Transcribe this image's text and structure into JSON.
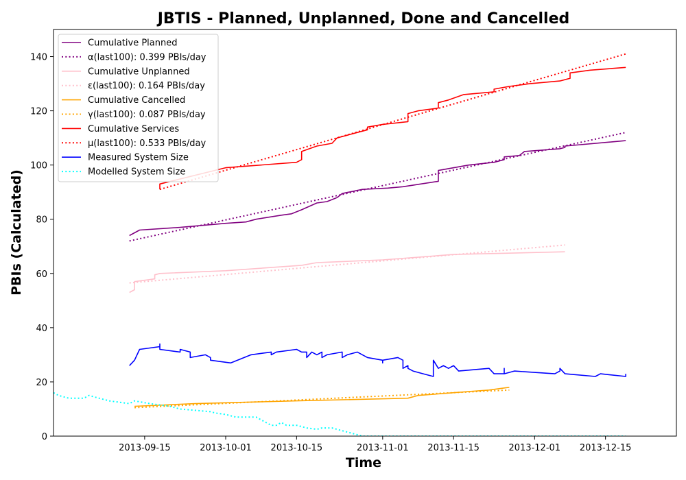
{
  "chart_data": {
    "type": "line",
    "title": "JBTIS - Planned, Unplanned, Done  and Cancelled",
    "xlabel": "Time",
    "ylabel": "PBIs (Calculated)",
    "xlim": [
      "2013-08-28",
      "2013-12-29"
    ],
    "ylim": [
      0,
      150
    ],
    "x_ticks": [
      "2013-09-15",
      "2013-10-01",
      "2013-10-15",
      "2013-11-01",
      "2013-11-15",
      "2013-12-01",
      "2013-12-15"
    ],
    "y_ticks": [
      0,
      20,
      40,
      60,
      80,
      100,
      120,
      140
    ],
    "grid": false,
    "legend_position": "top-left",
    "series": [
      {
        "name": "Cumulative Planned",
        "color": "#800080",
        "style": "solid",
        "points": [
          [
            "2013-09-12",
            74
          ],
          [
            "2013-09-14",
            76
          ],
          [
            "2013-09-22",
            77
          ],
          [
            "2013-10-01",
            78.5
          ],
          [
            "2013-10-05",
            79
          ],
          [
            "2013-10-07",
            80
          ],
          [
            "2013-10-12",
            81.5
          ],
          [
            "2013-10-14",
            82
          ],
          [
            "2013-10-16",
            83.5
          ],
          [
            "2013-10-19",
            86
          ],
          [
            "2013-10-21",
            86.5
          ],
          [
            "2013-10-23",
            88
          ],
          [
            "2013-10-24",
            89.5
          ],
          [
            "2013-10-28",
            91
          ],
          [
            "2013-11-02",
            91.5
          ],
          [
            "2013-11-05",
            92
          ],
          [
            "2013-11-12",
            94
          ],
          [
            "2013-11-12",
            98
          ],
          [
            "2013-11-18",
            100
          ],
          [
            "2013-11-23",
            101
          ],
          [
            "2013-11-25",
            102
          ],
          [
            "2013-11-25",
            103
          ],
          [
            "2013-11-28",
            103.5
          ],
          [
            "2013-11-29",
            105
          ],
          [
            "2013-12-06",
            106
          ],
          [
            "2013-12-07",
            106.5
          ],
          [
            "2013-12-07",
            107
          ],
          [
            "2013-12-19",
            109
          ]
        ]
      },
      {
        "name": "α(last100): 0.399 PBIs/day",
        "color": "#800080",
        "style": "dotted",
        "points": [
          [
            "2013-09-12",
            72
          ],
          [
            "2013-12-19",
            112
          ]
        ]
      },
      {
        "name": "Cumulative Unplanned",
        "color": "#ffc0cb",
        "style": "solid",
        "points": [
          [
            "2013-09-12",
            53
          ],
          [
            "2013-09-13",
            54
          ],
          [
            "2013-09-13",
            57
          ],
          [
            "2013-09-17",
            58
          ],
          [
            "2013-09-17",
            59.5
          ],
          [
            "2013-09-18",
            60
          ],
          [
            "2013-10-01",
            61
          ],
          [
            "2013-10-16",
            63
          ],
          [
            "2013-10-19",
            64
          ],
          [
            "2013-11-01",
            65
          ],
          [
            "2013-11-15",
            67
          ],
          [
            "2013-12-07",
            68
          ]
        ]
      },
      {
        "name": "ε(last100): 0.164 PBIs/day",
        "color": "#ffc0cb",
        "style": "dotted",
        "points": [
          [
            "2013-09-12",
            56.5
          ],
          [
            "2013-12-07",
            70.5
          ]
        ]
      },
      {
        "name": "Cumulative Cancelled",
        "color": "#ffa500",
        "style": "solid",
        "points": [
          [
            "2013-09-13",
            11
          ],
          [
            "2013-09-25",
            12
          ],
          [
            "2013-10-15",
            13
          ],
          [
            "2013-11-06",
            14
          ],
          [
            "2013-11-08",
            15
          ],
          [
            "2013-11-15",
            16
          ],
          [
            "2013-11-22",
            17
          ],
          [
            "2013-11-26",
            18
          ]
        ]
      },
      {
        "name": "γ(last100): 0.087 PBIs/day",
        "color": "#ffa500",
        "style": "dotted",
        "points": [
          [
            "2013-09-13",
            10.5
          ],
          [
            "2013-11-26",
            17
          ]
        ]
      },
      {
        "name": "Cumulative Services",
        "color": "#ff0000",
        "style": "solid",
        "points": [
          [
            "2013-09-18",
            91
          ],
          [
            "2013-09-18",
            93
          ],
          [
            "2013-10-01",
            99
          ],
          [
            "2013-10-15",
            101
          ],
          [
            "2013-10-16",
            102
          ],
          [
            "2013-10-16",
            105
          ],
          [
            "2013-10-19",
            107
          ],
          [
            "2013-10-22",
            108
          ],
          [
            "2013-10-23",
            110
          ],
          [
            "2013-10-25",
            111
          ],
          [
            "2013-10-27",
            112
          ],
          [
            "2013-10-29",
            113
          ],
          [
            "2013-10-29",
            114
          ],
          [
            "2013-11-01",
            115
          ],
          [
            "2013-11-06",
            116
          ],
          [
            "2013-11-06",
            119
          ],
          [
            "2013-11-08",
            120
          ],
          [
            "2013-11-12",
            121
          ],
          [
            "2013-11-12",
            123
          ],
          [
            "2013-11-14",
            124
          ],
          [
            "2013-11-17",
            126
          ],
          [
            "2013-11-23",
            127
          ],
          [
            "2013-11-23",
            128
          ],
          [
            "2013-11-26",
            129
          ],
          [
            "2013-11-30",
            130
          ],
          [
            "2013-12-06",
            131
          ],
          [
            "2013-12-08",
            132
          ],
          [
            "2013-12-08",
            134
          ],
          [
            "2013-12-12",
            135
          ],
          [
            "2013-12-19",
            136
          ]
        ]
      },
      {
        "name": "μ(last100): 0.533 PBIs/day",
        "color": "#ff0000",
        "style": "dotted",
        "points": [
          [
            "2013-09-18",
            91
          ],
          [
            "2013-12-19",
            141
          ]
        ]
      },
      {
        "name": "Measured System Size",
        "color": "#0000ff",
        "style": "solid",
        "points": [
          [
            "2013-09-12",
            26
          ],
          [
            "2013-09-13",
            28
          ],
          [
            "2013-09-14",
            32
          ],
          [
            "2013-09-18",
            33
          ],
          [
            "2013-09-18",
            34
          ],
          [
            "2013-09-18",
            32
          ],
          [
            "2013-09-22",
            31
          ],
          [
            "2013-09-22",
            32
          ],
          [
            "2013-09-24",
            31
          ],
          [
            "2013-09-24",
            29
          ],
          [
            "2013-09-27",
            30
          ],
          [
            "2013-09-28",
            29
          ],
          [
            "2013-09-28",
            28
          ],
          [
            "2013-10-02",
            27
          ],
          [
            "2013-10-06",
            30
          ],
          [
            "2013-10-10",
            31
          ],
          [
            "2013-10-10",
            30
          ],
          [
            "2013-10-11",
            31
          ],
          [
            "2013-10-15",
            32
          ],
          [
            "2013-10-16",
            31
          ],
          [
            "2013-10-17",
            31
          ],
          [
            "2013-10-17",
            29
          ],
          [
            "2013-10-18",
            31
          ],
          [
            "2013-10-19",
            30
          ],
          [
            "2013-10-20",
            31
          ],
          [
            "2013-10-20",
            29
          ],
          [
            "2013-10-21",
            30
          ],
          [
            "2013-10-24",
            31
          ],
          [
            "2013-10-24",
            29
          ],
          [
            "2013-10-25",
            30
          ],
          [
            "2013-10-27",
            31
          ],
          [
            "2013-10-29",
            29
          ],
          [
            "2013-11-01",
            28
          ],
          [
            "2013-11-01",
            27
          ],
          [
            "2013-11-01",
            28
          ],
          [
            "2013-11-04",
            29
          ],
          [
            "2013-11-05",
            28
          ],
          [
            "2013-11-05",
            25
          ],
          [
            "2013-11-06",
            26
          ],
          [
            "2013-11-06",
            25
          ],
          [
            "2013-11-07",
            24
          ],
          [
            "2013-11-09",
            23
          ],
          [
            "2013-11-11",
            22
          ],
          [
            "2013-11-11",
            28
          ],
          [
            "2013-11-12",
            25
          ],
          [
            "2013-11-13",
            26
          ],
          [
            "2013-11-14",
            25
          ],
          [
            "2013-11-15",
            26
          ],
          [
            "2013-11-16",
            24
          ],
          [
            "2013-11-22",
            25
          ],
          [
            "2013-11-23",
            23
          ],
          [
            "2013-11-25",
            23
          ],
          [
            "2013-11-25",
            25
          ],
          [
            "2013-11-25",
            23
          ],
          [
            "2013-11-27",
            24
          ],
          [
            "2013-12-05",
            23
          ],
          [
            "2013-12-06",
            24
          ],
          [
            "2013-12-06",
            25
          ],
          [
            "2013-12-07",
            23
          ],
          [
            "2013-12-13",
            22
          ],
          [
            "2013-12-14",
            23
          ],
          [
            "2013-12-19",
            22
          ],
          [
            "2013-12-19",
            23
          ]
        ]
      },
      {
        "name": "Modelled System Size",
        "color": "#00ffff",
        "style": "dotted",
        "points": [
          [
            "2013-08-28",
            16
          ],
          [
            "2013-08-29",
            15
          ],
          [
            "2013-08-31",
            14
          ],
          [
            "2013-09-03",
            14
          ],
          [
            "2013-09-04",
            15
          ],
          [
            "2013-09-06",
            14
          ],
          [
            "2013-09-08",
            13
          ],
          [
            "2013-09-10",
            12.5
          ],
          [
            "2013-09-12",
            12
          ],
          [
            "2013-09-13",
            13
          ],
          [
            "2013-09-16",
            12
          ],
          [
            "2013-09-20",
            11
          ],
          [
            "2013-09-22",
            10
          ],
          [
            "2013-09-25",
            9.5
          ],
          [
            "2013-09-28",
            9
          ],
          [
            "2013-09-29",
            8.5
          ],
          [
            "2013-10-01",
            8
          ],
          [
            "2013-10-03",
            7
          ],
          [
            "2013-10-07",
            7
          ],
          [
            "2013-10-08",
            6
          ],
          [
            "2013-10-09",
            5
          ],
          [
            "2013-10-10",
            4
          ],
          [
            "2013-10-11",
            4
          ],
          [
            "2013-10-12",
            5
          ],
          [
            "2013-10-13",
            4
          ],
          [
            "2013-10-15",
            4
          ],
          [
            "2013-10-17",
            3
          ],
          [
            "2013-10-19",
            2.5
          ],
          [
            "2013-10-20",
            3
          ],
          [
            "2013-10-22",
            3
          ],
          [
            "2013-10-24",
            2
          ],
          [
            "2013-10-26",
            1
          ],
          [
            "2013-10-28",
            0
          ],
          [
            "2013-12-19",
            0
          ]
        ]
      }
    ]
  }
}
